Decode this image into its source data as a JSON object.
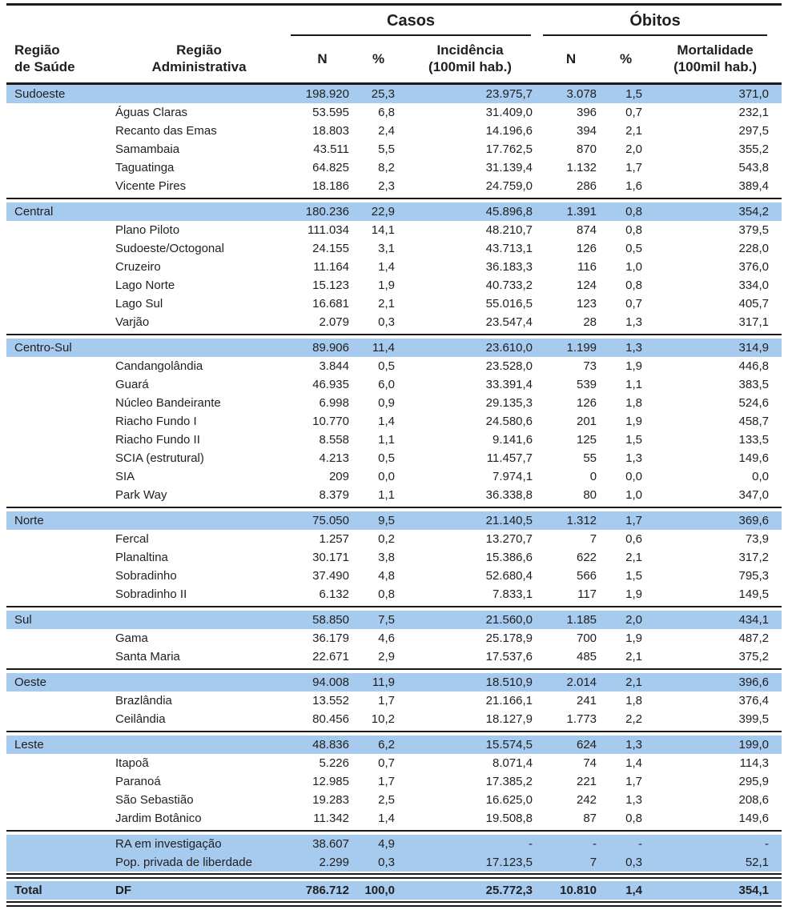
{
  "colors": {
    "band_blue": "#a7caef",
    "rule_black": "#1b1b1b",
    "text": "#1f1f1f",
    "background": "#ffffff"
  },
  "table": {
    "group_headers": {
      "casos": "Casos",
      "obitos": "Óbitos"
    },
    "columns": [
      "Região\nde Saúde",
      "Região\nAdministrativa",
      "N",
      "%",
      "Incidência\n(100mil hab.)",
      "N",
      "%",
      "Mortalidade\n(100mil hab.)"
    ],
    "groups": [
      {
        "region": "Sudoeste",
        "totals": [
          "198.920",
          "25,3",
          "23.975,7",
          "3.078",
          "1,5",
          "371,0"
        ],
        "rows": [
          {
            "name": "Águas Claras",
            "values": [
              "53.595",
              "6,8",
              "31.409,0",
              "396",
              "0,7",
              "232,1"
            ]
          },
          {
            "name": "Recanto das Emas",
            "values": [
              "18.803",
              "2,4",
              "14.196,6",
              "394",
              "2,1",
              "297,5"
            ]
          },
          {
            "name": "Samambaia",
            "values": [
              "43.511",
              "5,5",
              "17.762,5",
              "870",
              "2,0",
              "355,2"
            ]
          },
          {
            "name": "Taguatinga",
            "values": [
              "64.825",
              "8,2",
              "31.139,4",
              "1.132",
              "1,7",
              "543,8"
            ]
          },
          {
            "name": "Vicente Pires",
            "values": [
              "18.186",
              "2,3",
              "24.759,0",
              "286",
              "1,6",
              "389,4"
            ]
          }
        ]
      },
      {
        "region": "Central",
        "totals": [
          "180.236",
          "22,9",
          "45.896,8",
          "1.391",
          "0,8",
          "354,2"
        ],
        "rows": [
          {
            "name": "Plano Piloto",
            "values": [
              "111.034",
              "14,1",
              "48.210,7",
              "874",
              "0,8",
              "379,5"
            ]
          },
          {
            "name": "Sudoeste/Octogonal",
            "values": [
              "24.155",
              "3,1",
              "43.713,1",
              "126",
              "0,5",
              "228,0"
            ]
          },
          {
            "name": "Cruzeiro",
            "values": [
              "11.164",
              "1,4",
              "36.183,3",
              "116",
              "1,0",
              "376,0"
            ]
          },
          {
            "name": "Lago Norte",
            "values": [
              "15.123",
              "1,9",
              "40.733,2",
              "124",
              "0,8",
              "334,0"
            ]
          },
          {
            "name": "Lago Sul",
            "values": [
              "16.681",
              "2,1",
              "55.016,5",
              "123",
              "0,7",
              "405,7"
            ]
          },
          {
            "name": "Varjão",
            "values": [
              "2.079",
              "0,3",
              "23.547,4",
              "28",
              "1,3",
              "317,1"
            ]
          }
        ]
      },
      {
        "region": "Centro-Sul",
        "totals": [
          "89.906",
          "11,4",
          "23.610,0",
          "1.199",
          "1,3",
          "314,9"
        ],
        "rows": [
          {
            "name": "Candangolândia",
            "values": [
              "3.844",
              "0,5",
              "23.528,0",
              "73",
              "1,9",
              "446,8"
            ]
          },
          {
            "name": "Guará",
            "values": [
              "46.935",
              "6,0",
              "33.391,4",
              "539",
              "1,1",
              "383,5"
            ]
          },
          {
            "name": "Núcleo Bandeirante",
            "values": [
              "6.998",
              "0,9",
              "29.135,3",
              "126",
              "1,8",
              "524,6"
            ]
          },
          {
            "name": "Riacho Fundo I",
            "values": [
              "10.770",
              "1,4",
              "24.580,6",
              "201",
              "1,9",
              "458,7"
            ]
          },
          {
            "name": "Riacho Fundo II",
            "values": [
              "8.558",
              "1,1",
              "9.141,6",
              "125",
              "1,5",
              "133,5"
            ]
          },
          {
            "name": "SCIA (estrutural)",
            "values": [
              "4.213",
              "0,5",
              "11.457,7",
              "55",
              "1,3",
              "149,6"
            ]
          },
          {
            "name": "SIA",
            "values": [
              "209",
              "0,0",
              "7.974,1",
              "0",
              "0,0",
              "0,0"
            ]
          },
          {
            "name": "Park Way",
            "values": [
              "8.379",
              "1,1",
              "36.338,8",
              "80",
              "1,0",
              "347,0"
            ]
          }
        ]
      },
      {
        "region": "Norte",
        "totals": [
          "75.050",
          "9,5",
          "21.140,5",
          "1.312",
          "1,7",
          "369,6"
        ],
        "rows": [
          {
            "name": "Fercal",
            "values": [
              "1.257",
              "0,2",
              "13.270,7",
              "7",
              "0,6",
              "73,9"
            ]
          },
          {
            "name": "Planaltina",
            "values": [
              "30.171",
              "3,8",
              "15.386,6",
              "622",
              "2,1",
              "317,2"
            ]
          },
          {
            "name": "Sobradinho",
            "values": [
              "37.490",
              "4,8",
              "52.680,4",
              "566",
              "1,5",
              "795,3"
            ]
          },
          {
            "name": "Sobradinho II",
            "values": [
              "6.132",
              "0,8",
              "7.833,1",
              "117",
              "1,9",
              "149,5"
            ]
          }
        ]
      },
      {
        "region": "Sul",
        "totals": [
          "58.850",
          "7,5",
          "21.560,0",
          "1.185",
          "2,0",
          "434,1"
        ],
        "rows": [
          {
            "name": "Gama",
            "values": [
              "36.179",
              "4,6",
              "25.178,9",
              "700",
              "1,9",
              "487,2"
            ]
          },
          {
            "name": "Santa Maria",
            "values": [
              "22.671",
              "2,9",
              "17.537,6",
              "485",
              "2,1",
              "375,2"
            ]
          }
        ]
      },
      {
        "region": "Oeste",
        "totals": [
          "94.008",
          "11,9",
          "18.510,9",
          "2.014",
          "2,1",
          "396,6"
        ],
        "rows": [
          {
            "name": "Brazlândia",
            "values": [
              "13.552",
              "1,7",
              "21.166,1",
              "241",
              "1,8",
              "376,4"
            ]
          },
          {
            "name": "Ceilândia",
            "values": [
              "80.456",
              "10,2",
              "18.127,9",
              "1.773",
              "2,2",
              "399,5"
            ]
          }
        ]
      },
      {
        "region": "Leste",
        "totals": [
          "48.836",
          "6,2",
          "15.574,5",
          "624",
          "1,3",
          "199,0"
        ],
        "rows": [
          {
            "name": "Itapoã",
            "values": [
              "5.226",
              "0,7",
              "8.071,4",
              "74",
              "1,4",
              "114,3"
            ]
          },
          {
            "name": "Paranoá",
            "values": [
              "12.985",
              "1,7",
              "17.385,2",
              "221",
              "1,7",
              "295,9"
            ]
          },
          {
            "name": "São Sebastião",
            "values": [
              "19.283",
              "2,5",
              "16.625,0",
              "242",
              "1,3",
              "208,6"
            ]
          },
          {
            "name": "Jardim Botânico",
            "values": [
              "11.342",
              "1,4",
              "19.508,8",
              "87",
              "0,8",
              "149,6"
            ]
          }
        ]
      }
    ],
    "extras": [
      {
        "name": "RA em investigação",
        "values": [
          "38.607",
          "4,9",
          "-",
          "-",
          "-",
          "-"
        ]
      },
      {
        "name": "Pop. privada de liberdade",
        "values": [
          "2.299",
          "0,3",
          "17.123,5",
          "7",
          "0,3",
          "52,1"
        ]
      }
    ],
    "total": {
      "label": "Total",
      "name": "DF",
      "values": [
        "786.712",
        "100,0",
        "25.772,3",
        "10.810",
        "1,4",
        "354,1"
      ]
    }
  }
}
